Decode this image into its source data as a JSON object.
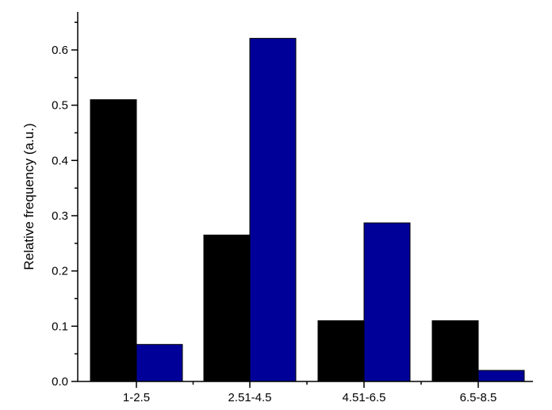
{
  "chart_data": {
    "type": "bar",
    "title": "",
    "xlabel": "",
    "ylabel": "Relative frequency (a.u.)",
    "categories": [
      "1-2.5",
      "2.51-4.5",
      "4.51-6.5",
      "6.5-8.5"
    ],
    "series": [
      {
        "values": [
          0.51,
          0.265,
          0.11,
          0.11
        ],
        "color": "#000000"
      },
      {
        "values": [
          0.067,
          0.621,
          0.287,
          0.02
        ],
        "color": "#000099"
      }
    ],
    "ylim": [
      0,
      0.67
    ],
    "yticks": [
      "0.0",
      "0.1",
      "0.2",
      "0.3",
      "0.4",
      "0.5",
      "0.6"
    ],
    "grid": false,
    "legend": "none"
  }
}
